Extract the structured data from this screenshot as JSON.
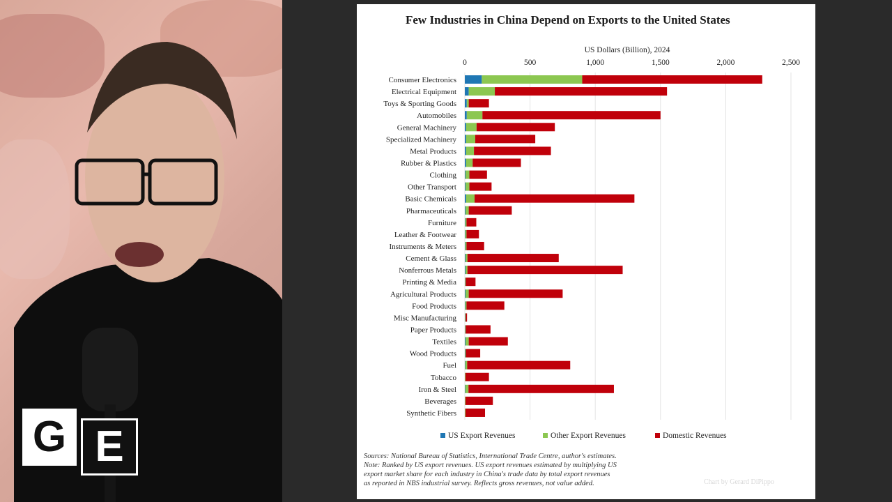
{
  "logo": {
    "letter1": "G",
    "letter2": "E"
  },
  "chart_data": {
    "type": "bar",
    "stacked": true,
    "orientation": "horizontal",
    "title": "Few Industries in China Depend on Exports to the United States",
    "xlabel": "US Dollars (Billion), 2024",
    "xlim": [
      0,
      2500
    ],
    "xticks": [
      0,
      500,
      1000,
      1500,
      2000,
      2500
    ],
    "xtick_labels": [
      "0",
      "500",
      "1,000",
      "1,500",
      "2,000",
      "2,500"
    ],
    "grid": true,
    "legend_position": "bottom",
    "categories": [
      "Consumer Electronics",
      "Electrical Equipment",
      "Toys & Sporting Goods",
      "Automobiles",
      "General Machinery",
      "Specialized Machinery",
      "Metal Products",
      "Rubber & Plastics",
      "Clothing",
      "Other Transport",
      "Basic Chemicals",
      "Pharmaceuticals",
      "Furniture",
      "Leather & Footwear",
      "Instruments & Meters",
      "Cement & Glass",
      "Nonferrous Metals",
      "Printing & Media",
      "Agricultural Products",
      "Food Products",
      "Misc Manufacturing",
      "Paper Products",
      "Textiles",
      "Wood Products",
      "Fuel",
      "Tobacco",
      "Iron & Steel",
      "Beverages",
      "Synthetic Fibers"
    ],
    "series": [
      {
        "name": "US Export Revenues",
        "color": "#1f77b4",
        "values": [
          130,
          30,
          15,
          15,
          10,
          10,
          10,
          10,
          5,
          5,
          10,
          5,
          3,
          3,
          3,
          5,
          5,
          2,
          5,
          3,
          2,
          2,
          5,
          3,
          3,
          0,
          3,
          0,
          0
        ]
      },
      {
        "name": "Other Export Revenues",
        "color": "#8cc751",
        "values": [
          770,
          200,
          15,
          120,
          80,
          70,
          60,
          50,
          30,
          30,
          65,
          25,
          10,
          10,
          10,
          15,
          15,
          5,
          25,
          10,
          5,
          5,
          25,
          5,
          15,
          5,
          25,
          5,
          5
        ]
      },
      {
        "name": "Domestic Revenues",
        "color": "#c0000a",
        "values": [
          1380,
          1320,
          155,
          1365,
          600,
          460,
          590,
          370,
          135,
          170,
          1225,
          330,
          75,
          95,
          135,
          700,
          1190,
          75,
          720,
          290,
          10,
          190,
          300,
          110,
          790,
          180,
          1115,
          210,
          150
        ]
      }
    ],
    "footnote_lines": [
      "Sources: National Bureau of Statistics, International Trade Centre, author's estimates.",
      "Note: Ranked by US export revenues. US export revenues estimated by multiplying US",
      "export market share for each industry in China's trade data by total export revenues",
      "as reported in NBS industrial survey. Reflects gross revenues, not value added."
    ],
    "credit": "Chart by Gerard DiPippo"
  }
}
